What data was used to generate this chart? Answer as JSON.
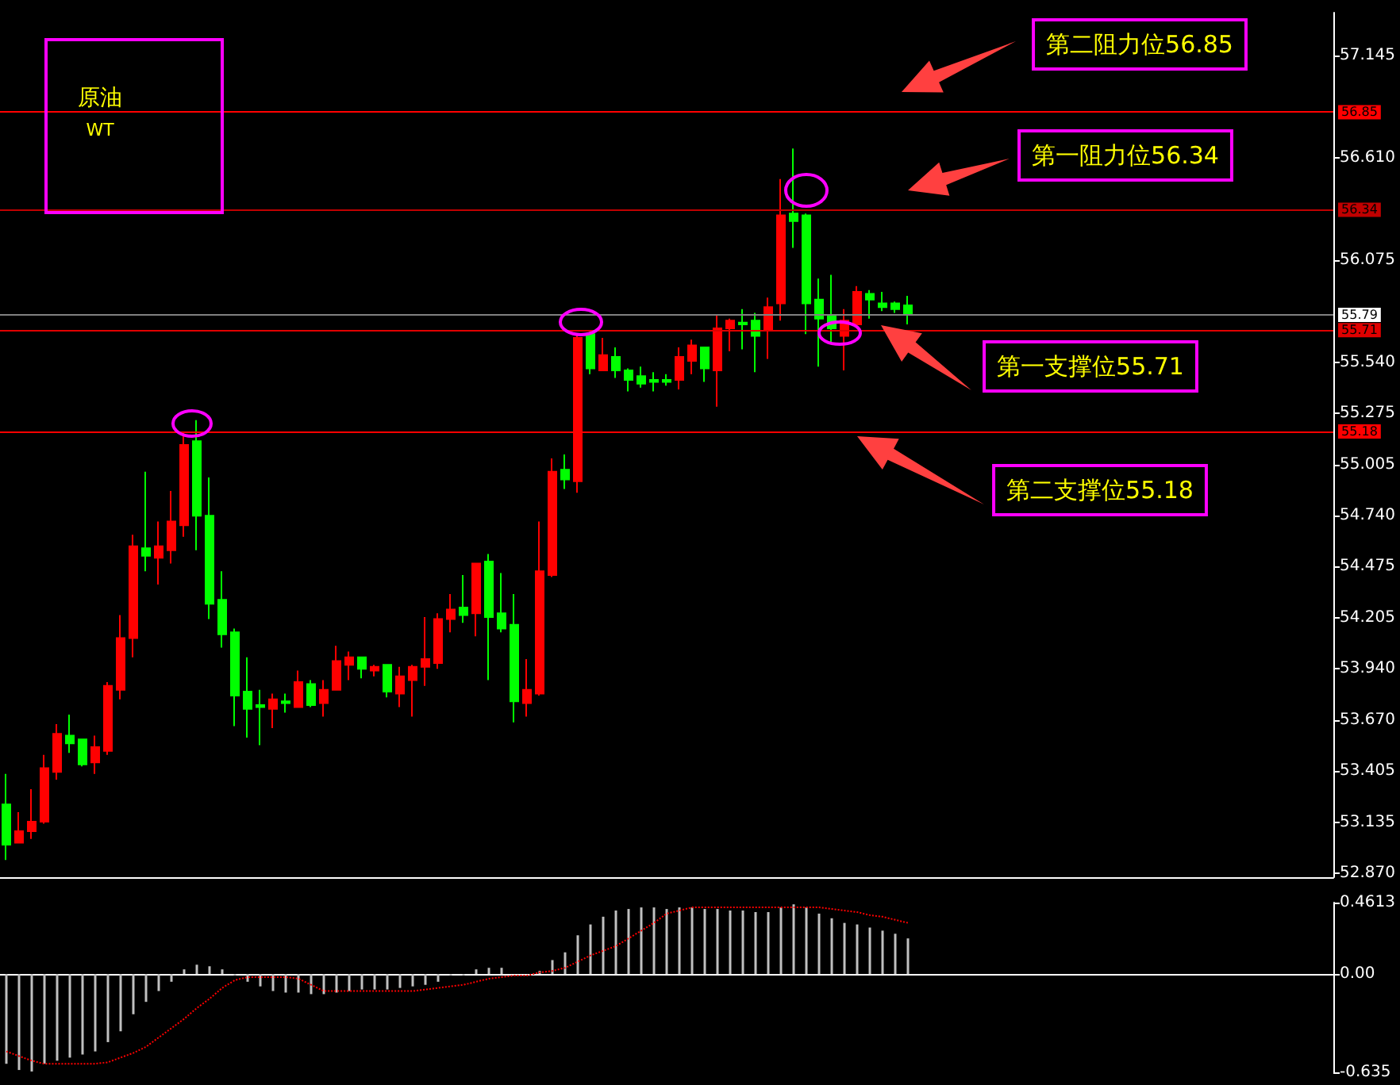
{
  "chart_data": [
    {
      "type": "candlestick",
      "categories": [
        null,
        null,
        null,
        null,
        null,
        null,
        null,
        null,
        null,
        null,
        null,
        null,
        null,
        null,
        null,
        null,
        null,
        null,
        null,
        null,
        null,
        null,
        null,
        null,
        null,
        null,
        null,
        null,
        null,
        null,
        null,
        null,
        null,
        null,
        null,
        null,
        null,
        null,
        null,
        null,
        null,
        null,
        null,
        null,
        null,
        null,
        null,
        null,
        null,
        null,
        null,
        null,
        null,
        null,
        null,
        null,
        null,
        null,
        null,
        null,
        null,
        null,
        null,
        null,
        null,
        null,
        null,
        null,
        null,
        null,
        null,
        null,
        null,
        null,
        null,
        null,
        null,
        null,
        null,
        null,
        null,
        null,
        null,
        null,
        null,
        null,
        null,
        null,
        null,
        null,
        null,
        null,
        null,
        null,
        null,
        null,
        null,
        null,
        null,
        null,
        null,
        null,
        null,
        null,
        null
      ],
      "ohlc": [
        [
          53.23,
          53.39,
          52.94,
          53.02
        ],
        [
          53.03,
          53.19,
          53.03,
          53.09
        ],
        [
          53.09,
          53.31,
          53.05,
          53.14
        ],
        [
          53.14,
          53.49,
          53.13,
          53.42
        ],
        [
          53.4,
          53.65,
          53.36,
          53.6
        ],
        [
          53.59,
          53.7,
          53.5,
          53.55
        ],
        [
          53.57,
          53.57,
          53.43,
          53.44
        ],
        [
          53.45,
          53.59,
          53.39,
          53.53
        ],
        [
          53.51,
          53.87,
          53.49,
          53.85
        ],
        [
          53.83,
          54.22,
          53.78,
          54.1
        ],
        [
          54.1,
          54.64,
          54.0,
          54.58
        ],
        [
          54.57,
          54.97,
          54.45,
          54.53
        ],
        [
          54.52,
          54.71,
          54.38,
          54.58
        ],
        [
          54.56,
          54.87,
          54.49,
          54.71
        ],
        [
          54.69,
          55.18,
          54.63,
          55.11
        ],
        [
          55.13,
          55.24,
          54.56,
          54.74
        ],
        [
          54.74,
          54.94,
          54.2,
          54.28
        ],
        [
          54.3,
          54.45,
          54.05,
          54.12
        ],
        [
          54.13,
          54.15,
          53.64,
          53.8
        ],
        [
          53.82,
          54.0,
          53.58,
          53.73
        ],
        [
          53.75,
          53.83,
          53.54,
          53.74
        ],
        [
          53.73,
          53.81,
          53.63,
          53.78
        ],
        [
          53.77,
          53.81,
          53.71,
          53.76
        ],
        [
          53.74,
          53.93,
          53.74,
          53.87
        ],
        [
          53.86,
          53.88,
          53.74,
          53.75
        ],
        [
          53.76,
          53.88,
          53.69,
          53.83
        ],
        [
          53.83,
          54.06,
          53.83,
          53.98
        ],
        [
          53.96,
          54.03,
          53.88,
          54.0
        ],
        [
          54.0,
          54.0,
          53.89,
          53.94
        ],
        [
          53.93,
          53.96,
          53.9,
          53.95
        ],
        [
          53.96,
          53.96,
          53.79,
          53.82
        ],
        [
          53.81,
          53.95,
          53.74,
          53.9
        ],
        [
          53.88,
          53.96,
          53.69,
          53.95
        ],
        [
          53.95,
          54.21,
          53.85,
          53.99
        ],
        [
          53.97,
          54.23,
          53.94,
          54.2
        ],
        [
          54.2,
          54.33,
          54.13,
          54.25
        ],
        [
          54.26,
          54.43,
          54.18,
          54.22
        ],
        [
          54.23,
          54.49,
          54.11,
          54.49
        ],
        [
          54.5,
          54.54,
          53.88,
          54.21
        ],
        [
          54.23,
          54.44,
          54.13,
          54.15
        ],
        [
          54.17,
          54.33,
          53.66,
          53.77
        ],
        [
          53.76,
          53.99,
          53.69,
          53.83
        ],
        [
          53.81,
          54.71,
          53.8,
          54.45
        ],
        [
          54.43,
          55.04,
          54.42,
          54.97
        ],
        [
          54.98,
          55.06,
          54.88,
          54.93
        ],
        [
          54.92,
          55.69,
          54.86,
          55.67
        ],
        [
          55.69,
          55.7,
          55.48,
          55.51
        ],
        [
          55.5,
          55.67,
          55.5,
          55.58
        ],
        [
          55.57,
          55.62,
          55.46,
          55.5
        ],
        [
          55.5,
          55.51,
          55.39,
          55.45
        ],
        [
          55.47,
          55.52,
          55.41,
          55.43
        ],
        [
          55.45,
          55.49,
          55.39,
          55.44
        ],
        [
          55.45,
          55.48,
          55.42,
          55.44
        ],
        [
          55.45,
          55.62,
          55.4,
          55.57
        ],
        [
          55.55,
          55.66,
          55.48,
          55.63
        ],
        [
          55.62,
          55.62,
          55.44,
          55.51
        ],
        [
          55.5,
          55.79,
          55.31,
          55.72
        ],
        [
          55.72,
          55.77,
          55.6,
          55.76
        ],
        [
          55.75,
          55.82,
          55.61,
          55.74
        ],
        [
          55.76,
          55.8,
          55.49,
          55.68
        ],
        [
          55.71,
          55.88,
          55.56,
          55.83
        ],
        [
          55.85,
          56.5,
          55.76,
          56.31
        ],
        [
          56.32,
          56.66,
          56.14,
          56.28
        ],
        [
          56.31,
          56.32,
          55.69,
          55.85
        ],
        [
          55.87,
          55.98,
          55.52,
          55.77
        ],
        [
          55.79,
          56.0,
          55.64,
          55.72
        ],
        [
          55.68,
          55.82,
          55.5,
          55.76
        ],
        [
          55.74,
          55.94,
          55.74,
          55.91
        ],
        [
          55.9,
          55.92,
          55.77,
          55.87
        ],
        [
          55.85,
          55.91,
          55.81,
          55.83
        ],
        [
          55.85,
          55.86,
          55.8,
          55.82
        ],
        [
          55.84,
          55.89,
          55.74,
          55.79
        ],
        null,
        null,
        null,
        null,
        null,
        null,
        null,
        null,
        null,
        null,
        null,
        null,
        null,
        null,
        null,
        null,
        null,
        null,
        null,
        null,
        null,
        null,
        null,
        null,
        null,
        null,
        null,
        null,
        null,
        null,
        null,
        null,
        null
      ],
      "colors": [
        "#00ff00",
        "#ff0000",
        "#ff0000",
        "#ff0000",
        "#ff0000",
        "#00ff00",
        "#00ff00",
        "#ff0000",
        "#ff0000",
        "#ff0000",
        "#ff0000",
        "#00ff00",
        "#ff0000",
        "#ff0000",
        "#ff0000",
        "#00ff00",
        "#00ff00",
        "#00ff00",
        "#00ff00",
        "#00ff00",
        "#00ff00",
        "#ff0000",
        "#00ff00",
        "#ff0000",
        "#00ff00",
        "#ff0000",
        "#ff0000",
        "#ff0000",
        "#00ff00",
        "#ff0000",
        "#00ff00",
        "#ff0000",
        "#ff0000",
        "#ff0000",
        "#ff0000",
        "#ff0000",
        "#00ff00",
        "#ff0000",
        "#00ff00",
        "#00ff00",
        "#00ff00",
        "#ff0000",
        "#ff0000",
        "#ff0000",
        "#00ff00",
        "#ff0000",
        "#00ff00",
        "#ff0000",
        "#00ff00",
        "#00ff00",
        "#00ff00",
        "#00ff00",
        "#00ff00",
        "#ff0000",
        "#ff0000",
        "#00ff00",
        "#ff0000",
        "#ff0000",
        "#00ff00",
        "#00ff00",
        "#ff0000",
        "#ff0000",
        "#00ff00",
        "#00ff00",
        "#00ff00",
        "#00ff00",
        "#ff0000",
        "#ff0000",
        "#00ff00",
        "#00ff00",
        "#00ff00",
        "#00ff00",
        null,
        null,
        null,
        null,
        null,
        null,
        null,
        null,
        null,
        null,
        null,
        null,
        null,
        null,
        null,
        null,
        null,
        null,
        null,
        null,
        null,
        null,
        null,
        null,
        null,
        null,
        null,
        null,
        null,
        null,
        null,
        null,
        null
      ],
      "ylim": [
        52.85,
        57.37
      ],
      "yticks": [
        57.145,
        {
          "value": 56.61,
          "label": "56.610"
        },
        56.075,
        {
          "value": 55.54,
          "label": "55.540"
        },
        55.275,
        55.005,
        {
          "value": 54.74,
          "label": "54.740"
        },
        54.475,
        54.205,
        {
          "value": 53.94,
          "label": "53.940"
        },
        {
          "value": 53.67,
          "label": "53.670"
        },
        53.405,
        53.135,
        {
          "value": 52.87,
          "label": "52.870"
        }
      ],
      "tick_labels": "y",
      "ref_lines": [
        {
          "axis": "y",
          "value": 56.85,
          "label": "56.85",
          "color": "#ff0000"
        },
        {
          "axis": "y",
          "value": 56.34,
          "label": "56.34",
          "color": "#c00000"
        },
        {
          "axis": "y",
          "value": 55.79,
          "label": "55.79",
          "color": "#808080"
        },
        {
          "axis": "y",
          "value": 55.71,
          "label": "55.71",
          "color": "#e00000"
        },
        {
          "axis": "y",
          "value": 55.18,
          "label": "55.18",
          "color": "#ff0000"
        }
      ],
      "annotations": [
        "原油",
        "WT",
        "第二阻力位56.85",
        "第一阻力位56.34",
        "第一支撑位55.71",
        "第二支撑位55.18"
      ]
    },
    {
      "type": "bar",
      "categories": [
        null,
        null,
        null,
        null,
        null,
        null,
        null,
        null,
        null,
        null,
        null,
        null,
        null,
        null,
        null,
        null,
        null,
        null,
        null,
        null,
        null,
        null,
        null,
        null,
        null,
        null,
        null,
        null,
        null,
        null,
        null,
        null,
        null,
        null,
        null,
        null,
        null,
        null,
        null,
        null,
        null,
        null,
        null,
        null,
        null,
        null,
        null,
        null,
        null,
        null,
        null,
        null,
        null,
        null,
        null,
        null,
        null,
        null,
        null,
        null,
        null,
        null,
        null,
        null,
        null,
        null,
        null,
        null,
        null,
        null,
        null,
        null,
        null,
        null,
        null,
        null,
        null,
        null,
        null,
        null,
        null,
        null,
        null,
        null,
        null,
        null,
        null,
        null,
        null,
        null,
        null,
        null,
        null,
        null,
        null,
        null,
        null,
        null,
        null,
        null,
        null,
        null,
        null,
        null,
        null
      ],
      "series": [
        {
          "type": "bar",
          "color": "#c0c0c0",
          "values": [
            -0.58,
            -0.62,
            -0.63,
            -0.58,
            -0.56,
            -0.54,
            -0.52,
            -0.5,
            -0.44,
            -0.37,
            -0.26,
            -0.18,
            -0.11,
            -0.05,
            0.03,
            0.06,
            0.05,
            0.03,
            -0.01,
            -0.05,
            -0.08,
            -0.11,
            -0.12,
            -0.12,
            -0.13,
            -0.13,
            -0.12,
            -0.11,
            -0.1,
            -0.1,
            -0.1,
            -0.09,
            -0.08,
            -0.07,
            -0.05,
            -0.01,
            -0.01,
            0.03,
            0.04,
            0.04,
            null,
            null,
            0.02,
            0.09,
            0.14,
            0.25,
            0.32,
            0.37,
            0.41,
            0.42,
            0.43,
            0.43,
            0.42,
            0.43,
            0.43,
            0.42,
            0.42,
            0.41,
            0.41,
            0.4,
            0.4,
            0.43,
            0.45,
            0.43,
            0.39,
            0.36,
            0.33,
            0.32,
            0.3,
            0.28,
            0.26,
            0.23,
            null,
            null,
            null,
            null,
            null,
            null,
            null,
            null,
            null,
            null,
            null,
            null,
            null,
            null,
            null,
            null,
            null,
            null,
            null,
            null,
            null,
            null,
            null,
            null,
            null,
            null,
            null,
            null,
            null,
            null,
            null,
            null,
            null
          ]
        },
        {
          "type": "line",
          "color": "#ff0000",
          "line_style": "dotted",
          "values": [
            -0.5,
            -0.53,
            -0.56,
            -0.58,
            -0.58,
            -0.58,
            -0.58,
            -0.58,
            -0.57,
            -0.54,
            -0.51,
            -0.47,
            -0.41,
            -0.35,
            -0.29,
            -0.22,
            -0.16,
            -0.09,
            -0.04,
            -0.02,
            -0.02,
            -0.02,
            -0.02,
            -0.03,
            -0.07,
            -0.11,
            -0.11,
            -0.11,
            -0.11,
            -0.11,
            -0.11,
            -0.11,
            -0.11,
            -0.1,
            -0.09,
            -0.08,
            -0.07,
            -0.05,
            -0.03,
            -0.02,
            -0.01,
            -0.01,
            0.01,
            0.02,
            0.04,
            0.08,
            0.12,
            0.15,
            0.18,
            0.23,
            0.28,
            0.33,
            0.39,
            0.41,
            0.43,
            0.43,
            0.43,
            0.43,
            0.43,
            0.43,
            0.43,
            0.43,
            0.43,
            0.43,
            0.43,
            0.42,
            0.41,
            0.4,
            0.38,
            0.37,
            0.35,
            0.33,
            null,
            null,
            null,
            null,
            null,
            null,
            null,
            null,
            null,
            null,
            null,
            null,
            null,
            null,
            null,
            null,
            null,
            null,
            null,
            null,
            null,
            null,
            null,
            null,
            null,
            null,
            null,
            null,
            null,
            null,
            null,
            null,
            null
          ]
        }
      ],
      "ylim": [
        -0.635,
        0.4613
      ],
      "yticks": [
        0.4613,
        {
          "value": 0,
          "label": "0.00"
        },
        -0.635
      ],
      "tick_labels": "y"
    }
  ]
}
